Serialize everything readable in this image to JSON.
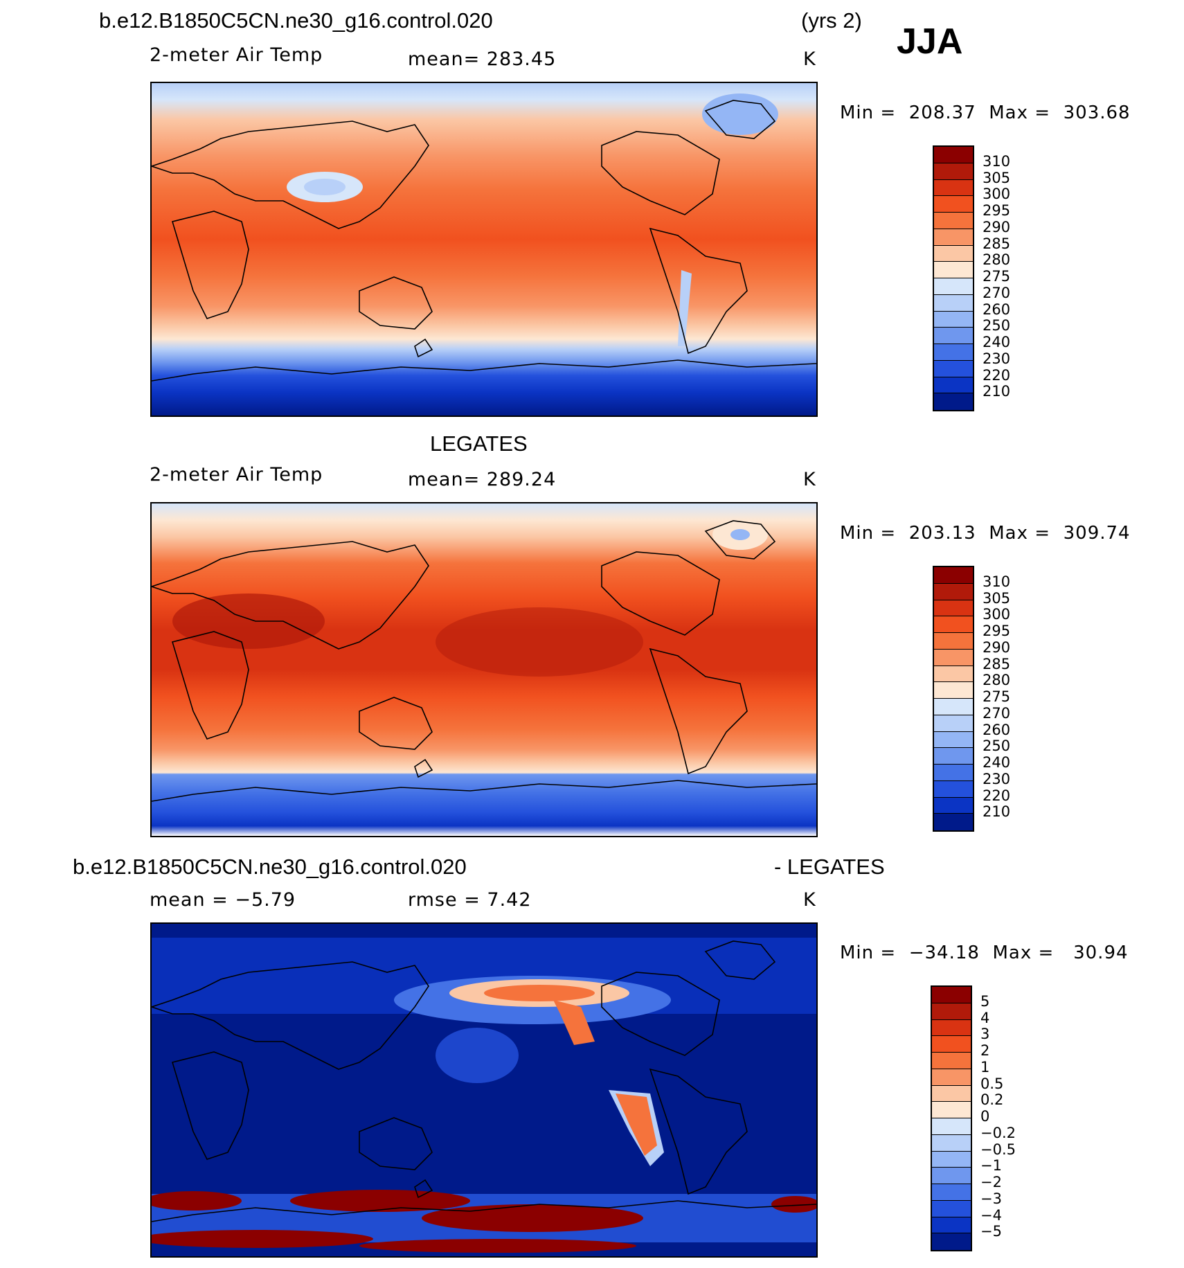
{
  "header": {
    "case_name": "b.e12.B1850C5CN.ne30_g16.control.020",
    "years": "(yrs 2)",
    "season": "JJA"
  },
  "panels": [
    {
      "id": "model",
      "variable": "2-meter Air Temp",
      "mean_text": "mean=  283.45",
      "units": "K",
      "min_label": "Min",
      "min_value": "208.37",
      "max_label": "Max",
      "max_value": "303.68",
      "colorbar_labels": [
        "310",
        "305",
        "300",
        "295",
        "290",
        "285",
        "280",
        "275",
        "270",
        "260",
        "250",
        "240",
        "230",
        "220",
        "210"
      ],
      "colorbar_colors": [
        "#8b0000",
        "#b11a0a",
        "#d93312",
        "#f1511f",
        "#f5733c",
        "#f89566",
        "#fbc7a5",
        "#fde7d3",
        "#d6e6fa",
        "#b8d0f8",
        "#94b6f5",
        "#6f97ee",
        "#4472e6",
        "#2451dc",
        "#0b34c4",
        "#001a8a"
      ]
    },
    {
      "id": "obs",
      "title": "LEGATES",
      "variable": "2-meter Air Temp",
      "mean_text": "mean=  289.24",
      "units": "K",
      "min_label": "Min",
      "min_value": "203.13",
      "max_label": "Max",
      "max_value": "309.74",
      "colorbar_labels": [
        "310",
        "305",
        "300",
        "295",
        "290",
        "285",
        "280",
        "275",
        "270",
        "260",
        "250",
        "240",
        "230",
        "220",
        "210"
      ],
      "colorbar_colors": [
        "#8b0000",
        "#b11a0a",
        "#d93312",
        "#f1511f",
        "#f5733c",
        "#f89566",
        "#fbc7a5",
        "#fde7d3",
        "#d6e6fa",
        "#b8d0f8",
        "#94b6f5",
        "#6f97ee",
        "#4472e6",
        "#2451dc",
        "#0b34c4",
        "#001a8a"
      ]
    },
    {
      "id": "diff",
      "title_left": "b.e12.B1850C5CN.ne30_g16.control.020",
      "title_right": "- LEGATES",
      "mean_text": "mean =   −5.79",
      "rmse_text": "rmse =     7.42",
      "units": "K",
      "min_label": "Min",
      "min_value": "−34.18",
      "max_label": "Max",
      "max_value": "30.94",
      "colorbar_labels": [
        "5",
        "4",
        "3",
        "2",
        "1",
        "0.5",
        "0.2",
        "0",
        "−0.2",
        "−0.5",
        "−1",
        "−2",
        "−3",
        "−4",
        "−5"
      ],
      "colorbar_colors": [
        "#8b0000",
        "#b11a0a",
        "#d93312",
        "#f1511f",
        "#f5733c",
        "#f89566",
        "#fbc7a5",
        "#fde7d3",
        "#d6e6fa",
        "#b8d0f8",
        "#94b6f5",
        "#6f97ee",
        "#4472e6",
        "#2451dc",
        "#0b34c4",
        "#001a8a"
      ]
    }
  ]
}
